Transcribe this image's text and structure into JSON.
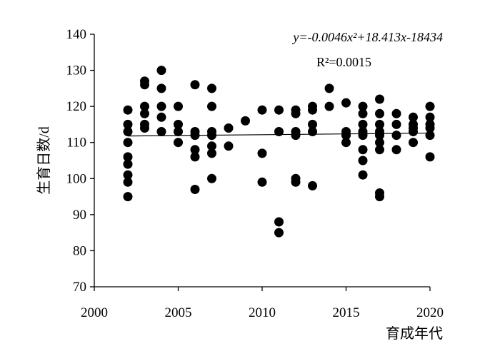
{
  "chart_data": {
    "type": "scatter",
    "title": "",
    "xlabel": "育成年代",
    "ylabel": "生育日数/d",
    "xlim": [
      2000,
      2020
    ],
    "ylim": [
      70,
      140
    ],
    "xticks": [
      2000,
      2005,
      2010,
      2015,
      2020
    ],
    "yticks": [
      70,
      80,
      90,
      100,
      110,
      120,
      130,
      140
    ],
    "grid": false,
    "legend": "none",
    "colors": {
      "points": "#000000",
      "trendline": "#000000"
    },
    "trendline": {
      "equation": "y=-0.0046x²+18.413x-18434",
      "r_squared_label": "R²=0.0015",
      "coefficients": {
        "a": -0.0046,
        "b": 18.413,
        "c": -18434
      },
      "x_range": [
        2002,
        2020
      ],
      "start_value": 111.8,
      "end_value": 112.6
    },
    "series": [
      {
        "points": [
          [
            2002,
            119
          ],
          [
            2002,
            115
          ],
          [
            2002,
            113
          ],
          [
            2002,
            110
          ],
          [
            2002,
            106
          ],
          [
            2002,
            104
          ],
          [
            2002,
            101
          ],
          [
            2002,
            99
          ],
          [
            2002,
            95
          ],
          [
            2003,
            127
          ],
          [
            2003,
            126
          ],
          [
            2003,
            120
          ],
          [
            2003,
            118
          ],
          [
            2003,
            115
          ],
          [
            2003,
            114
          ],
          [
            2004,
            130
          ],
          [
            2004,
            125
          ],
          [
            2004,
            120
          ],
          [
            2004,
            117
          ],
          [
            2004,
            113
          ],
          [
            2005,
            120
          ],
          [
            2005,
            115
          ],
          [
            2005,
            113
          ],
          [
            2005,
            110
          ],
          [
            2006,
            126
          ],
          [
            2006,
            113
          ],
          [
            2006,
            112
          ],
          [
            2006,
            108
          ],
          [
            2006,
            106
          ],
          [
            2006,
            97
          ],
          [
            2007,
            125
          ],
          [
            2007,
            120
          ],
          [
            2007,
            113
          ],
          [
            2007,
            112
          ],
          [
            2007,
            109
          ],
          [
            2007,
            107
          ],
          [
            2007,
            100
          ],
          [
            2008,
            114
          ],
          [
            2008,
            109
          ],
          [
            2009,
            116
          ],
          [
            2010,
            119
          ],
          [
            2010,
            107
          ],
          [
            2010,
            99
          ],
          [
            2011,
            119
          ],
          [
            2011,
            113
          ],
          [
            2011,
            88
          ],
          [
            2011,
            85
          ],
          [
            2012,
            119
          ],
          [
            2012,
            118
          ],
          [
            2012,
            113
          ],
          [
            2012,
            112
          ],
          [
            2012,
            100
          ],
          [
            2012,
            99
          ],
          [
            2013,
            120
          ],
          [
            2013,
            119
          ],
          [
            2013,
            115
          ],
          [
            2013,
            113
          ],
          [
            2013,
            98
          ],
          [
            2014,
            125
          ],
          [
            2014,
            120
          ],
          [
            2015,
            121
          ],
          [
            2015,
            113
          ],
          [
            2015,
            112
          ],
          [
            2015,
            110
          ],
          [
            2016,
            120
          ],
          [
            2016,
            118
          ],
          [
            2016,
            115
          ],
          [
            2016,
            113
          ],
          [
            2016,
            112
          ],
          [
            2016,
            108
          ],
          [
            2016,
            105
          ],
          [
            2016,
            101
          ],
          [
            2017,
            122
          ],
          [
            2017,
            118
          ],
          [
            2017,
            115
          ],
          [
            2017,
            113
          ],
          [
            2017,
            112
          ],
          [
            2017,
            110
          ],
          [
            2017,
            108
          ],
          [
            2017,
            96
          ],
          [
            2017,
            95
          ],
          [
            2018,
            118
          ],
          [
            2018,
            115
          ],
          [
            2018,
            112
          ],
          [
            2018,
            108
          ],
          [
            2019,
            117
          ],
          [
            2019,
            115
          ],
          [
            2019,
            114
          ],
          [
            2019,
            113
          ],
          [
            2019,
            110
          ],
          [
            2020,
            120
          ],
          [
            2020,
            117
          ],
          [
            2020,
            115
          ],
          [
            2020,
            114
          ],
          [
            2020,
            112
          ],
          [
            2020,
            106
          ]
        ]
      }
    ]
  }
}
